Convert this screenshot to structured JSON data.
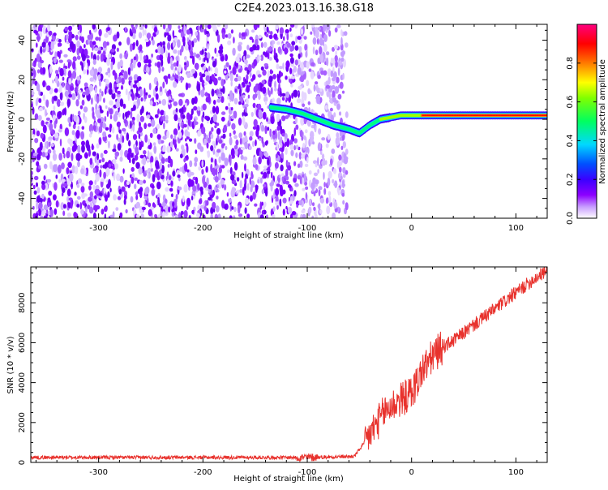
{
  "title": "C2E4.2023.013.16.38.G18",
  "chart_data": [
    {
      "type": "heatmap",
      "xlabel": "Height of straight line (km)",
      "ylabel": "Frequency (Hz)",
      "xlim": [
        -365,
        130
      ],
      "ylim": [
        -50,
        48
      ],
      "xticks": [
        -300,
        -200,
        -100,
        0,
        100
      ],
      "xtick_labels": [
        "-300",
        "-200",
        "-100",
        "0",
        "100"
      ],
      "yticks": [
        -40,
        -20,
        0,
        20,
        40
      ],
      "ytick_labels": [
        "-40",
        "-20",
        "0",
        "20",
        "40"
      ],
      "noise_region_x": [
        -365,
        -62
      ],
      "signal_track": {
        "x": [
          -135,
          -120,
          -105,
          -90,
          -75,
          -60,
          -50,
          -40,
          -30,
          -20,
          -10,
          0,
          20,
          40,
          60,
          80,
          100,
          130
        ],
        "y": [
          6,
          5,
          3,
          0,
          -3,
          -5,
          -7,
          -3,
          0,
          1,
          2,
          2,
          2,
          2,
          2,
          2,
          2,
          2
        ]
      },
      "colorbar": {
        "label": "Normalized spectral amplitude",
        "range": [
          0,
          1
        ],
        "ticks": [
          0.0,
          0.2,
          0.4,
          0.6,
          0.8
        ],
        "tick_labels": [
          "0.0",
          "0.2",
          "0.4",
          "0.6",
          "0.8"
        ],
        "colors": [
          "#ffffff",
          "#8c00ff",
          "#0000ff",
          "#00ffff",
          "#00ff00",
          "#ffff00",
          "#ff0000",
          "#ff0080"
        ]
      },
      "grid": false
    },
    {
      "type": "line",
      "xlabel": "Height of straight line (km)",
      "ylabel": "SNR (10 * v/v)",
      "xlim": [
        -365,
        130
      ],
      "ylim": [
        0,
        9800
      ],
      "xticks": [
        -300,
        -200,
        -100,
        0,
        100
      ],
      "xtick_labels": [
        "-300",
        "-200",
        "-100",
        "0",
        "100"
      ],
      "yticks": [
        0,
        2000,
        4000,
        6000,
        8000
      ],
      "ytick_labels": [
        "0",
        "2000",
        "4000",
        "6000",
        "8000"
      ],
      "series": [
        {
          "color": "#e8322d",
          "x": [
            -365,
            -300,
            -200,
            -100,
            -55,
            -45,
            -35,
            -25,
            -15,
            -5,
            0,
            5,
            10,
            20,
            30,
            40,
            50,
            60,
            70,
            80,
            90,
            100,
            110,
            120,
            130
          ],
          "y": [
            250,
            250,
            250,
            250,
            300,
            1000,
            1800,
            2600,
            3000,
            3300,
            3500,
            4000,
            4600,
            5300,
            5800,
            6100,
            6500,
            6900,
            7300,
            7700,
            8100,
            8500,
            8900,
            9300,
            9600
          ]
        }
      ],
      "grid": false
    }
  ]
}
